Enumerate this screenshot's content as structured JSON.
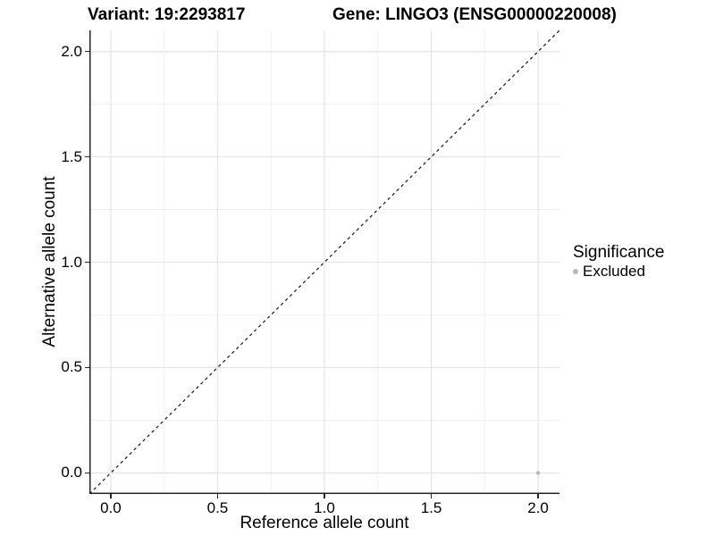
{
  "figure": {
    "title_left": "Variant: 19:2293817",
    "title_right": "Gene: LINGO3 (ENSG00000220008)",
    "background": "#ffffff"
  },
  "chart_data": {
    "type": "scatter",
    "title": "Variant: 19:2293817    Gene: LINGO3 (ENSG00000220008)",
    "xlabel": "Reference allele count",
    "ylabel": "Alternative allele count",
    "x_axis": {
      "label": "Reference allele count",
      "range": [
        -0.1,
        2.1
      ],
      "ticks": [
        0,
        0.5,
        1,
        1.5,
        2
      ],
      "tick_labels": [
        "0.0",
        "0.5",
        "1.0",
        "1.5",
        "2.0"
      ],
      "minor_ticks": [
        0.25,
        0.75,
        1.25,
        1.75
      ]
    },
    "y_axis": {
      "label": "Alternative allele count",
      "range": [
        -0.1,
        2.1
      ],
      "ticks": [
        0,
        0.5,
        1,
        1.5,
        2
      ],
      "tick_labels": [
        "0.0",
        "0.5",
        "1.0",
        "1.5",
        "2.0"
      ],
      "minor_ticks": [
        0.25,
        0.75,
        1.25,
        1.75
      ]
    },
    "grid": {
      "major_color": "#e4e4e4",
      "minor_color": "#f1f1f1",
      "background": "#ffffff"
    },
    "axis_line_color": "#262626",
    "reference_line": {
      "type": "identity",
      "style": "dashed",
      "from": [
        -0.1,
        -0.1
      ],
      "to": [
        2.1,
        2.1
      ],
      "color": "#141414"
    },
    "series": [
      {
        "name": "Excluded",
        "color": "#b8b8b8",
        "points": [
          {
            "x": 2.0,
            "y": 0.0
          }
        ]
      }
    ],
    "legend": {
      "title": "Significance",
      "position": "right",
      "items": [
        {
          "label": "Excluded",
          "color": "#b8b8b8"
        }
      ]
    }
  }
}
